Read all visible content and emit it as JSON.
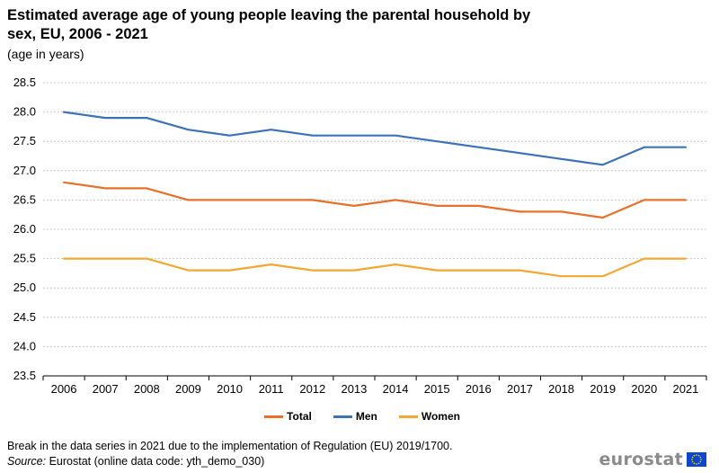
{
  "header": {
    "title": "Estimated average age of young people leaving the parental household by sex, EU, 2006 - 2021",
    "subtitle": "(age in years)"
  },
  "chart_data": {
    "type": "line",
    "x": [
      "2006",
      "2007",
      "2008",
      "2009",
      "2010",
      "2011",
      "2012",
      "2013",
      "2014",
      "2015",
      "2016",
      "2017",
      "2018",
      "2019",
      "2020",
      "2021"
    ],
    "series": [
      {
        "name": "Total",
        "color": "#e8702a",
        "values": [
          26.8,
          26.7,
          26.7,
          26.5,
          26.5,
          26.5,
          26.5,
          26.4,
          26.5,
          26.4,
          26.4,
          26.3,
          26.3,
          26.2,
          26.5,
          26.5
        ]
      },
      {
        "name": "Men",
        "color": "#3b72b8",
        "values": [
          28.0,
          27.9,
          27.9,
          27.7,
          27.6,
          27.7,
          27.6,
          27.6,
          27.6,
          27.5,
          27.4,
          27.3,
          27.2,
          27.1,
          27.4,
          27.4
        ]
      },
      {
        "name": "Women",
        "color": "#f2a833",
        "values": [
          25.5,
          25.5,
          25.5,
          25.3,
          25.3,
          25.4,
          25.3,
          25.3,
          25.4,
          25.3,
          25.3,
          25.3,
          25.2,
          25.2,
          25.5,
          25.5
        ]
      }
    ],
    "yticks": [
      "23.5",
      "24.0",
      "24.5",
      "25.0",
      "25.5",
      "26.0",
      "26.5",
      "27.0",
      "27.5",
      "28.0",
      "28.5"
    ],
    "ylim": [
      23.5,
      28.5
    ],
    "grid": true,
    "xlabel": "",
    "ylabel": ""
  },
  "legend": {
    "items": [
      {
        "label": "Total",
        "color": "#e8702a"
      },
      {
        "label": "Men",
        "color": "#3b72b8"
      },
      {
        "label": "Women",
        "color": "#f2a833"
      }
    ]
  },
  "footer": {
    "note": "Break in the data series in 2021 due to the implementation of Regulation (EU) 2019/1700.",
    "source_label": "Source:",
    "source_text": " Eurostat (online data code: yth_demo_030)",
    "logo_text": "eurostat",
    "flag_color": "#0e47cb",
    "star_color": "#ffdd00"
  }
}
